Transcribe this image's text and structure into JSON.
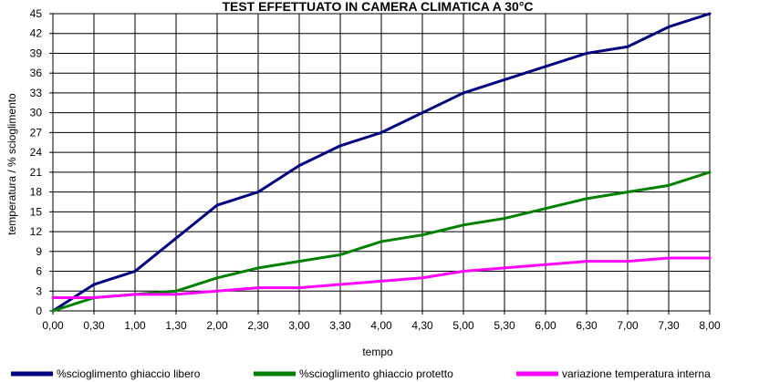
{
  "chart_data": {
    "type": "line",
    "title": "TEST EFFETTUATO IN CAMERA CLIMATICA A 30°C",
    "xlabel": "tempo",
    "ylabel": "temperatura / % scioglimento",
    "categories": [
      "0,00",
      "0,30",
      "1,00",
      "1,30",
      "2,00",
      "2,30",
      "3,00",
      "3,30",
      "4,00",
      "4,30",
      "5,00",
      "5,30",
      "6,00",
      "6,30",
      "7,00",
      "7,30",
      "8,00"
    ],
    "yticks": [
      "0",
      "3",
      "6",
      "9",
      "12",
      "15",
      "18",
      "21",
      "24",
      "27",
      "30",
      "33",
      "36",
      "39",
      "42",
      "45"
    ],
    "ylim": [
      0,
      45
    ],
    "grid": true,
    "legend_position": "bottom",
    "series": [
      {
        "name": "%scioglimento ghiaccio libero",
        "color": "#000080",
        "values": [
          0,
          4,
          6,
          11,
          16,
          18,
          22,
          25,
          27,
          30,
          33,
          35,
          37,
          39,
          40,
          43,
          45
        ]
      },
      {
        "name": "%scioglimento ghiaccio protetto",
        "color": "#008000",
        "values": [
          0,
          2,
          2.5,
          3,
          5,
          6.5,
          7.5,
          8.5,
          10.5,
          11.5,
          13,
          14,
          15.5,
          17,
          18,
          19,
          21
        ]
      },
      {
        "name": "variazione temperatura interna",
        "color": "#ff00ff",
        "values": [
          2,
          2,
          2.5,
          2.5,
          3,
          3.5,
          3.5,
          4,
          4.5,
          5,
          6,
          6.5,
          7,
          7.5,
          7.5,
          8,
          8
        ]
      }
    ]
  }
}
